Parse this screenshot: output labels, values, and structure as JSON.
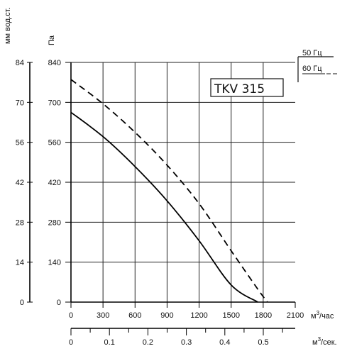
{
  "chart_data": {
    "type": "line",
    "title": "TKV 315",
    "left_axis_outer": {
      "label": "мм вод.ст.",
      "ticks": [
        "84",
        "70",
        "56",
        "42",
        "28",
        "14",
        "0"
      ]
    },
    "left_axis_inner": {
      "label": "Па",
      "ticks": [
        "840",
        "700",
        "560",
        "420",
        "280",
        "140",
        "0"
      ]
    },
    "ylim": [
      0,
      840
    ],
    "x_axis_primary": {
      "unit_base": "м",
      "unit_sup": "3",
      "unit_rest": "/час",
      "ticks": [
        "0",
        "300",
        "600",
        "900",
        "1200",
        "1500",
        "1800",
        "2100"
      ],
      "xlim": [
        0,
        2100
      ]
    },
    "x_axis_secondary": {
      "unit_base": "м",
      "unit_sup": "3",
      "unit_rest": "/сек.",
      "ticks": [
        "0",
        "0.1",
        "0.2",
        "0.3",
        "0.4",
        "0.5"
      ],
      "xlim": [
        0,
        0.583
      ]
    },
    "grid": true,
    "legend_position": "top-right outside",
    "series": [
      {
        "name": "50 Гц",
        "style": "solid",
        "points": [
          [
            0,
            665
          ],
          [
            300,
            580
          ],
          [
            600,
            475
          ],
          [
            900,
            355
          ],
          [
            1200,
            215
          ],
          [
            1500,
            60
          ],
          [
            1750,
            0
          ]
        ]
      },
      {
        "name": "60 Гц",
        "style": "dashed",
        "points": [
          [
            0,
            780
          ],
          [
            300,
            695
          ],
          [
            600,
            595
          ],
          [
            900,
            480
          ],
          [
            1200,
            345
          ],
          [
            1500,
            180
          ],
          [
            1750,
            45
          ],
          [
            1840,
            0
          ]
        ]
      }
    ],
    "color": "#000000",
    "grid_color": "#222222"
  }
}
